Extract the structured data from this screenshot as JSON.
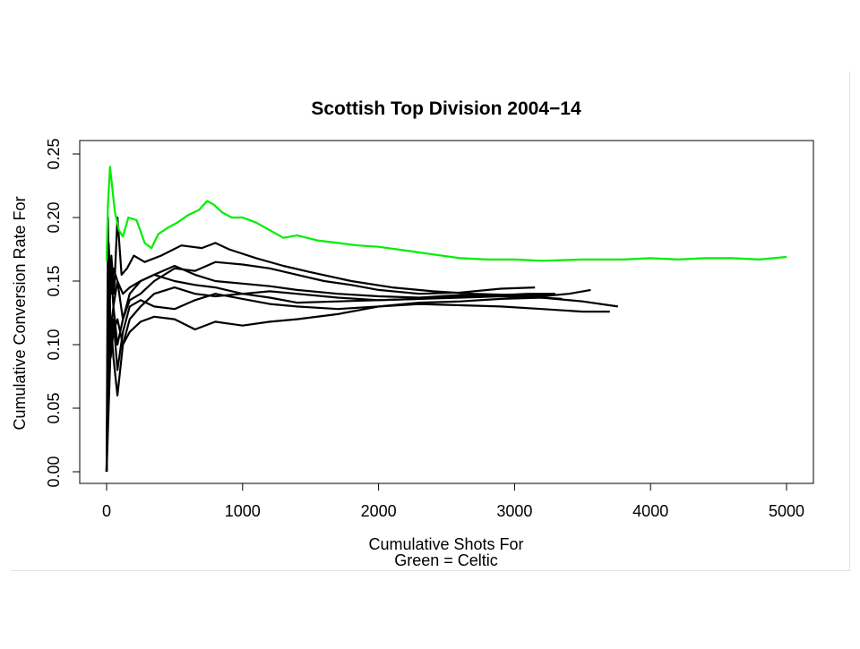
{
  "chart_data": {
    "type": "line",
    "title": "Scottish Top Division 2004−14",
    "xlabel": "Cumulative Shots For",
    "xlabel_line2": "Green = Celtic",
    "ylabel": "Cumulative Conversion Rate For",
    "xlim": [
      0,
      5000
    ],
    "ylim": [
      0,
      0.25
    ],
    "x_ticks": [
      0,
      1000,
      2000,
      3000,
      4000,
      5000
    ],
    "x_tick_labels": [
      "0",
      "1000",
      "2000",
      "3000",
      "4000",
      "5000"
    ],
    "y_ticks": [
      0,
      0.05,
      0.1,
      0.15,
      0.2,
      0.25
    ],
    "y_tick_labels": [
      "0.00",
      "0.05",
      "0.10",
      "0.15",
      "0.20",
      "0.25"
    ],
    "grid": false,
    "legend": "none",
    "colors": {
      "celtic": "#00ee00",
      "other": "#000000"
    },
    "series": [
      {
        "color": "#00ee00",
        "x": [
          0,
          10,
          25,
          40,
          60,
          90,
          120,
          160,
          220,
          280,
          330,
          380,
          450,
          520,
          600,
          680,
          740,
          790,
          850,
          920,
          1000,
          1100,
          1200,
          1300,
          1400,
          1550,
          1700,
          1850,
          2000,
          2200,
          2400,
          2600,
          2800,
          3000,
          3200,
          3500,
          3800,
          4000,
          4200,
          4400,
          4600,
          4800,
          5000
        ],
        "y": [
          0.166,
          0.21,
          0.24,
          0.225,
          0.205,
          0.19,
          0.185,
          0.2,
          0.198,
          0.18,
          0.176,
          0.187,
          0.192,
          0.196,
          0.202,
          0.206,
          0.213,
          0.21,
          0.204,
          0.2,
          0.2,
          0.196,
          0.19,
          0.184,
          0.186,
          0.182,
          0.18,
          0.178,
          0.177,
          0.174,
          0.171,
          0.168,
          0.167,
          0.167,
          0.166,
          0.167,
          0.167,
          0.168,
          0.167,
          0.168,
          0.168,
          0.167,
          0.169
        ]
      },
      {
        "color": "#000000",
        "x": [
          0,
          10,
          20,
          35,
          55,
          80,
          110,
          150,
          200,
          280,
          400,
          550,
          700,
          800,
          900,
          1100,
          1300,
          1500,
          1800,
          2100,
          2400,
          2700,
          3000,
          3200,
          3400,
          3560
        ],
        "y": [
          0.0,
          0.2,
          0.12,
          0.17,
          0.14,
          0.2,
          0.155,
          0.16,
          0.17,
          0.165,
          0.17,
          0.178,
          0.176,
          0.18,
          0.175,
          0.168,
          0.162,
          0.157,
          0.15,
          0.145,
          0.142,
          0.14,
          0.139,
          0.138,
          0.14,
          0.143
        ]
      },
      {
        "color": "#000000",
        "x": [
          0,
          15,
          30,
          50,
          80,
          120,
          170,
          250,
          350,
          500,
          650,
          800,
          1000,
          1200,
          1400,
          1600,
          1800,
          2000,
          2300,
          2600,
          2900,
          3150
        ],
        "y": [
          0.0,
          0.12,
          0.16,
          0.13,
          0.15,
          0.12,
          0.135,
          0.14,
          0.15,
          0.16,
          0.158,
          0.165,
          0.163,
          0.16,
          0.155,
          0.15,
          0.147,
          0.143,
          0.14,
          0.141,
          0.144,
          0.145
        ]
      },
      {
        "color": "#000000",
        "x": [
          0,
          15,
          30,
          50,
          80,
          120,
          170,
          250,
          350,
          500,
          650,
          800,
          1000,
          1200,
          1400,
          1700,
          2000,
          2300,
          2600,
          2900,
          3200,
          3500,
          3760
        ],
        "y": [
          0.0,
          0.17,
          0.11,
          0.13,
          0.1,
          0.12,
          0.14,
          0.15,
          0.155,
          0.162,
          0.155,
          0.15,
          0.148,
          0.146,
          0.143,
          0.14,
          0.138,
          0.137,
          0.139,
          0.138,
          0.137,
          0.134,
          0.13
        ]
      },
      {
        "color": "#000000",
        "x": [
          0,
          15,
          30,
          50,
          80,
          120,
          170,
          250,
          350,
          500,
          650,
          800,
          1000,
          1200,
          1400,
          1700,
          2000,
          2300,
          2600,
          2900,
          3200,
          3500,
          3700
        ],
        "y": [
          0.0,
          0.13,
          0.09,
          0.11,
          0.12,
          0.1,
          0.11,
          0.118,
          0.122,
          0.12,
          0.112,
          0.118,
          0.115,
          0.118,
          0.12,
          0.124,
          0.13,
          0.132,
          0.131,
          0.13,
          0.128,
          0.126,
          0.126
        ]
      },
      {
        "color": "#000000",
        "x": [
          0,
          15,
          30,
          50,
          80,
          120,
          170,
          250,
          350,
          500,
          650,
          800,
          1000,
          1200,
          1400,
          1700,
          2000,
          2300,
          2600,
          2900,
          3100,
          3300
        ],
        "y": [
          0.0,
          0.08,
          0.12,
          0.09,
          0.06,
          0.1,
          0.12,
          0.13,
          0.14,
          0.145,
          0.14,
          0.138,
          0.14,
          0.137,
          0.133,
          0.134,
          0.135,
          0.136,
          0.138,
          0.139,
          0.14,
          0.14
        ]
      },
      {
        "color": "#000000",
        "x": [
          0,
          15,
          30,
          50,
          80,
          120,
          170,
          250,
          350,
          500,
          650,
          800,
          1000,
          1200,
          1400,
          1700,
          2000,
          2300,
          2600,
          2900,
          3200,
          3350
        ],
        "y": [
          0.0,
          0.05,
          0.1,
          0.12,
          0.08,
          0.11,
          0.13,
          0.135,
          0.13,
          0.128,
          0.135,
          0.14,
          0.136,
          0.132,
          0.13,
          0.128,
          0.13,
          0.133,
          0.134,
          0.136,
          0.137,
          0.136
        ]
      },
      {
        "color": "#000000",
        "x": [
          0,
          15,
          30,
          50,
          80,
          120,
          170,
          250,
          350,
          500,
          650,
          800,
          1000,
          1200,
          1400,
          1700,
          2000,
          2300,
          2600,
          2900,
          3250
        ],
        "y": [
          0.0,
          0.18,
          0.14,
          0.16,
          0.15,
          0.14,
          0.145,
          0.15,
          0.155,
          0.15,
          0.147,
          0.145,
          0.14,
          0.142,
          0.14,
          0.137,
          0.135,
          0.136,
          0.137,
          0.138,
          0.139
        ]
      }
    ]
  }
}
